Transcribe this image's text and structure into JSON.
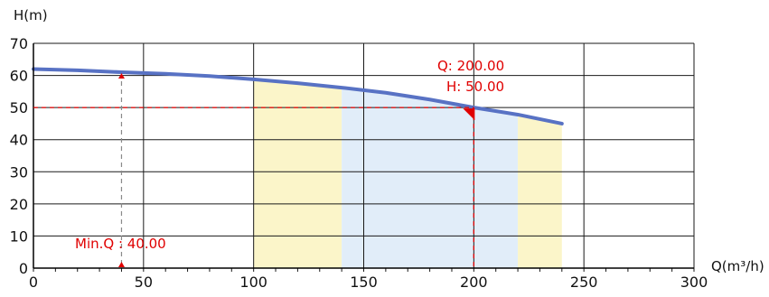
{
  "chart_data": {
    "type": "line",
    "title": "",
    "xlabel": "Q(m³/h)",
    "ylabel": "H(m)",
    "xlim": [
      0,
      300
    ],
    "ylim": [
      0,
      70
    ],
    "xticks": [
      0,
      50,
      100,
      150,
      200,
      250,
      300
    ],
    "yticks": [
      0,
      10,
      20,
      30,
      40,
      50,
      60,
      70
    ],
    "grid": true,
    "series": [
      {
        "x": [
          0,
          20,
          40,
          60,
          80,
          100,
          120,
          140,
          160,
          180,
          200,
          220,
          240
        ],
        "y": [
          62.0,
          61.6,
          61.0,
          60.5,
          59.8,
          58.8,
          57.6,
          56.2,
          54.6,
          52.5,
          50.0,
          47.8,
          45.0
        ],
        "color": "#5872c4"
      }
    ],
    "regions": [
      {
        "x0": 100,
        "x1": 140,
        "color": "#fbf5c9"
      },
      {
        "x0": 140,
        "x1": 220,
        "color": "#e1edf9"
      },
      {
        "x0": 220,
        "x1": 240,
        "color": "#fbf5c9"
      }
    ],
    "operating_point": {
      "q": 200,
      "h": 50,
      "q_label": "Q: 200.00",
      "h_label": "H: 50.00",
      "color": "#e00000"
    },
    "min_q": {
      "q": 40,
      "label": "Min.Q : 40.00",
      "color": "#e00000"
    }
  }
}
